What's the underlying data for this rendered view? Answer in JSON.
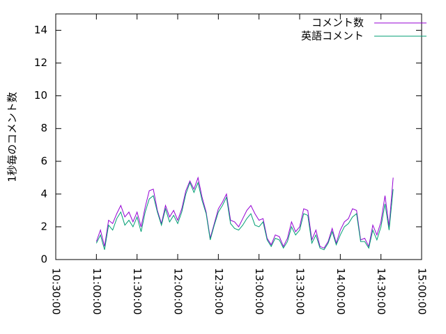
{
  "chart_data": {
    "type": "line",
    "ylabel": "1秒毎のコメント数",
    "x": [
      "11:00:00",
      "11:03:00",
      "11:06:00",
      "11:09:00",
      "11:12:00",
      "11:15:00",
      "11:18:00",
      "11:21:00",
      "11:24:00",
      "11:27:00",
      "11:30:00",
      "11:33:00",
      "11:36:00",
      "11:39:00",
      "11:42:00",
      "11:45:00",
      "11:48:00",
      "11:51:00",
      "11:54:00",
      "11:57:00",
      "12:00:00",
      "12:03:00",
      "12:06:00",
      "12:09:00",
      "12:12:00",
      "12:15:00",
      "12:18:00",
      "12:21:00",
      "12:24:00",
      "12:27:00",
      "12:30:00",
      "12:33:00",
      "12:36:00",
      "12:39:00",
      "12:42:00",
      "12:45:00",
      "12:48:00",
      "12:51:00",
      "12:54:00",
      "12:57:00",
      "13:00:00",
      "13:03:00",
      "13:06:00",
      "13:09:00",
      "13:12:00",
      "13:15:00",
      "13:18:00",
      "13:21:00",
      "13:24:00",
      "13:27:00",
      "13:30:00",
      "13:33:00",
      "13:36:00",
      "13:39:00",
      "13:42:00",
      "13:45:00",
      "13:48:00",
      "13:51:00",
      "13:54:00",
      "13:57:00",
      "14:00:00",
      "14:03:00",
      "14:06:00",
      "14:09:00",
      "14:12:00",
      "14:15:00",
      "14:18:00",
      "14:21:00",
      "14:24:00",
      "14:27:00",
      "14:30:00",
      "14:33:00",
      "14:36:00",
      "14:39:00"
    ],
    "series": [
      {
        "name": "コメント数",
        "color": "#9400d3",
        "values": [
          1.1,
          1.8,
          0.8,
          2.4,
          2.2,
          2.8,
          3.3,
          2.6,
          2.9,
          2.3,
          2.9,
          2.0,
          3.2,
          4.2,
          4.3,
          3.0,
          2.2,
          3.3,
          2.6,
          3.0,
          2.4,
          3.1,
          4.2,
          4.8,
          4.3,
          5.0,
          3.8,
          2.9,
          1.3,
          2.2,
          3.1,
          3.5,
          4.0,
          2.4,
          2.3,
          2.0,
          2.5,
          3.0,
          3.3,
          2.8,
          2.4,
          2.5,
          1.3,
          0.9,
          1.5,
          1.4,
          0.8,
          1.3,
          2.3,
          1.7,
          2.0,
          3.1,
          3.0,
          1.2,
          1.8,
          0.8,
          0.7,
          1.1,
          1.9,
          1.0,
          1.8,
          2.3,
          2.5,
          3.1,
          3.0,
          1.2,
          1.3,
          0.8,
          2.1,
          1.5,
          2.3,
          3.9,
          2.0,
          5.0
        ]
      },
      {
        "name": "英語コメント",
        "color": "#009e73",
        "values": [
          1.0,
          1.5,
          0.6,
          2.1,
          1.8,
          2.5,
          2.9,
          2.1,
          2.4,
          2.0,
          2.6,
          1.7,
          2.9,
          3.7,
          3.9,
          2.9,
          2.1,
          3.1,
          2.3,
          2.7,
          2.2,
          2.9,
          4.0,
          4.7,
          4.1,
          4.7,
          3.6,
          2.8,
          1.2,
          2.1,
          2.9,
          3.3,
          3.8,
          2.2,
          1.9,
          1.8,
          2.1,
          2.5,
          2.8,
          2.1,
          2.0,
          2.3,
          1.2,
          0.8,
          1.3,
          1.2,
          0.7,
          1.1,
          2.0,
          1.5,
          1.8,
          2.8,
          2.7,
          1.0,
          1.5,
          0.7,
          0.6,
          1.0,
          1.7,
          0.9,
          1.5,
          2.0,
          2.2,
          2.6,
          2.8,
          1.1,
          1.1,
          0.7,
          1.8,
          1.2,
          2.0,
          3.4,
          1.8,
          4.3
        ]
      }
    ],
    "xlim": [
      "10:30:00",
      "15:00:00"
    ],
    "xticks": [
      "10:30:00",
      "11:00:00",
      "11:30:00",
      "12:00:00",
      "12:30:00",
      "13:00:00",
      "13:30:00",
      "14:00:00",
      "14:30:00",
      "15:00:00"
    ],
    "ylim": [
      0,
      15
    ],
    "yticks": [
      0,
      2,
      4,
      6,
      8,
      10,
      12,
      14
    ],
    "grid": false,
    "legend": "top-right"
  }
}
